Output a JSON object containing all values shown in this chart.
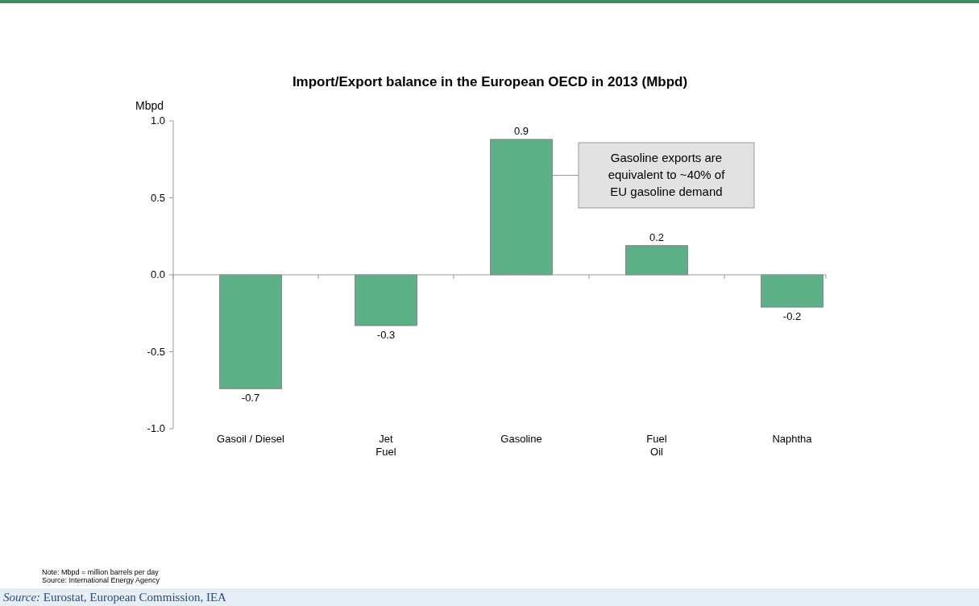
{
  "chart_data": {
    "type": "bar",
    "title": "Import/Export balance in the European OECD in 2013 (Mbpd)",
    "ylabel": "Mbpd",
    "categories": [
      "Gasoil / Diesel",
      "Jet Fuel",
      "Gasoline",
      "Fuel Oil",
      "Naphtha"
    ],
    "values": [
      -0.74,
      -0.33,
      0.88,
      0.19,
      -0.21
    ],
    "value_labels": [
      "-0.7",
      "-0.3",
      "0.9",
      "0.2",
      "-0.2"
    ],
    "color": "#5bb085",
    "ylim": [
      -1,
      1
    ],
    "yticks": [
      {
        "value": -1,
        "label": "-1.0"
      },
      {
        "value": -0.5,
        "label": "-0.5"
      },
      {
        "value": 0,
        "label": "0.0"
      },
      {
        "value": 0.5,
        "label": "0.5"
      },
      {
        "value": 1,
        "label": "1.0"
      }
    ],
    "annotations": [
      "Gasoline exports are equivalent to ~40% of EU gasoline demand",
      "Note: Mbpd = million barrels per day",
      "Source: International Energy Agency",
      "Source: Eurostat, European Commission, IEA"
    ]
  }
}
